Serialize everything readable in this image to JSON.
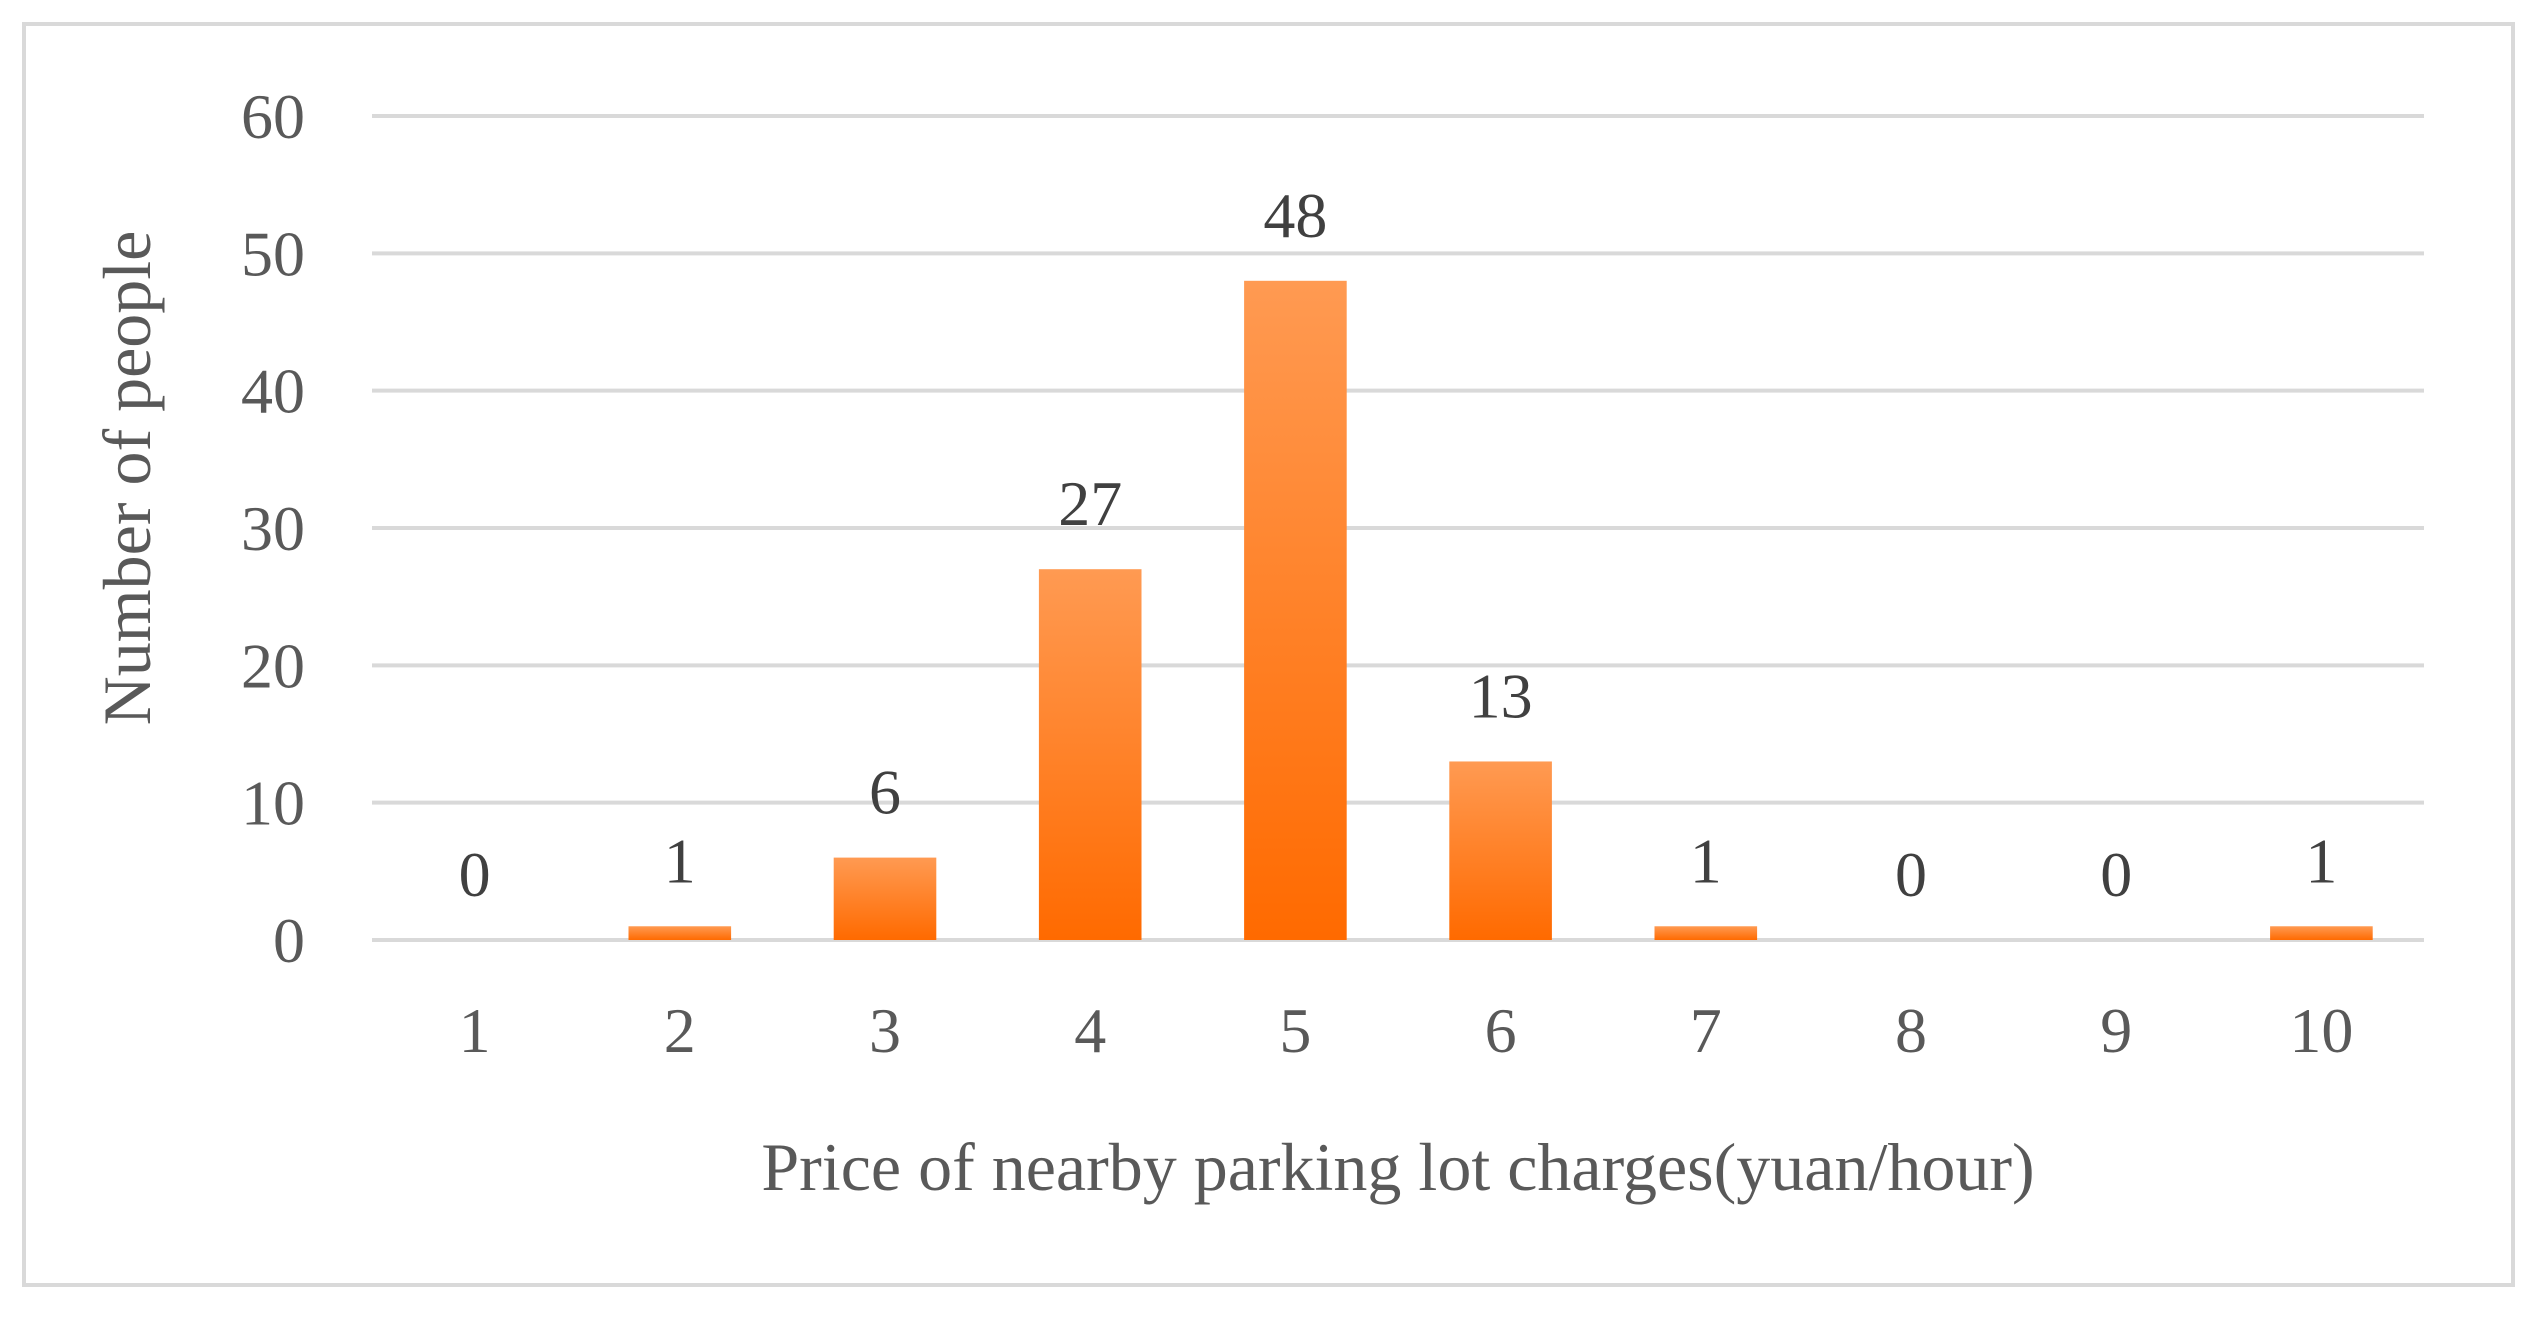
{
  "chart_data": {
    "type": "bar",
    "categories": [
      "1",
      "2",
      "3",
      "4",
      "5",
      "6",
      "7",
      "8",
      "9",
      "10"
    ],
    "values": [
      0,
      1,
      6,
      27,
      48,
      13,
      1,
      0,
      0,
      1
    ],
    "data_labels": [
      "0",
      "1",
      "6",
      "27",
      "48",
      "13",
      "1",
      "0",
      "0",
      "1"
    ],
    "title": "",
    "xlabel": "Price of nearby parking lot charges(yuan/hour)",
    "ylabel": "Number of people",
    "ylim": [
      0,
      60
    ],
    "yticks": [
      "0",
      "10",
      "20",
      "30",
      "40",
      "50",
      "60"
    ],
    "grid": true,
    "legend": "none",
    "bar_color": "#ff7f2a",
    "bar_color_light": "#ff9a52",
    "bar_color_dark": "#ff6a00"
  }
}
